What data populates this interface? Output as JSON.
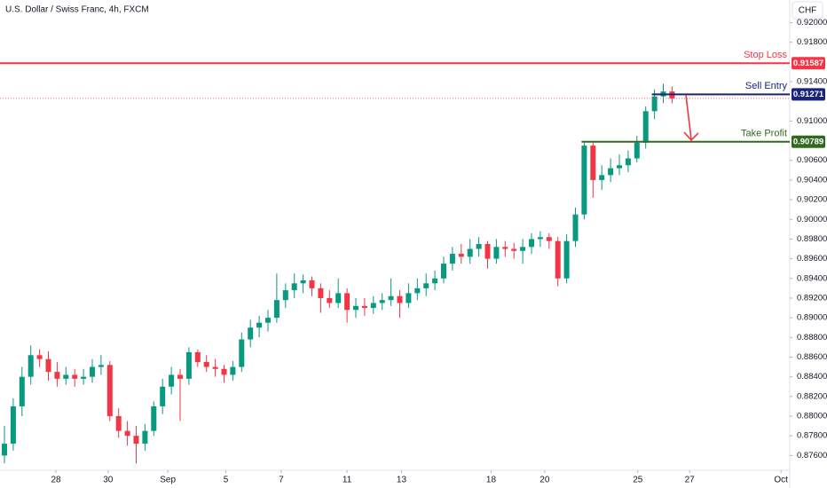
{
  "chart_data": {
    "type": "candlestick",
    "title": "U.S. Dollar / Swiss Franc, 4h, FXCM",
    "currency": "CHF",
    "up_color": "#089981",
    "down_color": "#f23645",
    "ylim": [
      0.8745,
      0.9223
    ],
    "yticks": [
      {
        "value": 0.92,
        "label": "0.92000"
      },
      {
        "value": 0.918,
        "label": "0.91800"
      },
      {
        "value": 0.914,
        "label": "0.91400"
      },
      {
        "value": 0.91,
        "label": "0.91000"
      },
      {
        "value": 0.906,
        "label": "0.90600"
      },
      {
        "value": 0.904,
        "label": "0.90400"
      },
      {
        "value": 0.902,
        "label": "0.90200"
      },
      {
        "value": 0.9,
        "label": "0.90000"
      },
      {
        "value": 0.898,
        "label": "0.89800"
      },
      {
        "value": 0.896,
        "label": "0.89600"
      },
      {
        "value": 0.894,
        "label": "0.89400"
      },
      {
        "value": 0.892,
        "label": "0.89200"
      },
      {
        "value": 0.89,
        "label": "0.89000"
      },
      {
        "value": 0.888,
        "label": "0.88800"
      },
      {
        "value": 0.886,
        "label": "0.88600"
      },
      {
        "value": 0.884,
        "label": "0.88400"
      },
      {
        "value": 0.882,
        "label": "0.88200"
      },
      {
        "value": 0.88,
        "label": "0.88000"
      },
      {
        "value": 0.878,
        "label": "0.87800"
      },
      {
        "value": 0.876,
        "label": "0.87600"
      }
    ],
    "xticks": [
      {
        "value": 5.86,
        "label": "28"
      },
      {
        "value": 11.8,
        "label": "30"
      },
      {
        "value": 18.6,
        "label": "Sep"
      },
      {
        "value": 25.2,
        "label": "5"
      },
      {
        "value": 31.5,
        "label": "7"
      },
      {
        "value": 39,
        "label": "11"
      },
      {
        "value": 45.2,
        "label": "13"
      },
      {
        "value": 55.4,
        "label": "18"
      },
      {
        "value": 61.5,
        "label": "20"
      },
      {
        "value": 72.1,
        "label": "25"
      },
      {
        "value": 78,
        "label": "27"
      },
      {
        "value": 88.4,
        "label": "Oct"
      }
    ],
    "levels": [
      {
        "label": "Stop Loss",
        "value": 0.91587,
        "color": "#f23645"
      },
      {
        "label": "Sell Entry",
        "value": 0.91271,
        "color": "#1a237e"
      },
      {
        "label": "Take Profit",
        "value": 0.90789,
        "color": "#33691e"
      }
    ],
    "ohlc": [
      [
        0.876,
        0.879,
        0.8752,
        0.8772
      ],
      [
        0.8772,
        0.8818,
        0.8765,
        0.881
      ],
      [
        0.881,
        0.885,
        0.88,
        0.884
      ],
      [
        0.884,
        0.8872,
        0.8832,
        0.8862
      ],
      [
        0.8862,
        0.8868,
        0.885,
        0.8858
      ],
      [
        0.8858,
        0.8866,
        0.8836,
        0.8845
      ],
      [
        0.8845,
        0.8855,
        0.883,
        0.8838
      ],
      [
        0.8838,
        0.885,
        0.8832,
        0.8842
      ],
      [
        0.8842,
        0.8848,
        0.883,
        0.8838
      ],
      [
        0.8838,
        0.8848,
        0.8832,
        0.884
      ],
      [
        0.884,
        0.8858,
        0.8834,
        0.885
      ],
      [
        0.885,
        0.8862,
        0.8842,
        0.8852
      ],
      [
        0.8852,
        0.8856,
        0.8795,
        0.88
      ],
      [
        0.88,
        0.8808,
        0.8778,
        0.8785
      ],
      [
        0.8785,
        0.8795,
        0.877,
        0.878
      ],
      [
        0.878,
        0.879,
        0.8752,
        0.8772
      ],
      [
        0.8772,
        0.8792,
        0.8765,
        0.8785
      ],
      [
        0.8785,
        0.8815,
        0.878,
        0.881
      ],
      [
        0.881,
        0.8838,
        0.8802,
        0.883
      ],
      [
        0.883,
        0.885,
        0.8822,
        0.8842
      ],
      [
        0.8842,
        0.8848,
        0.8795,
        0.8838
      ],
      [
        0.8838,
        0.887,
        0.8832,
        0.8865
      ],
      [
        0.8865,
        0.8868,
        0.885,
        0.8855
      ],
      [
        0.8855,
        0.8862,
        0.8845,
        0.885
      ],
      [
        0.885,
        0.8858,
        0.884,
        0.8848
      ],
      [
        0.8848,
        0.8852,
        0.8834,
        0.8842
      ],
      [
        0.8842,
        0.8856,
        0.8836,
        0.885
      ],
      [
        0.885,
        0.8885,
        0.8845,
        0.8878
      ],
      [
        0.8878,
        0.8898,
        0.887,
        0.889
      ],
      [
        0.889,
        0.8902,
        0.888,
        0.8895
      ],
      [
        0.8895,
        0.8908,
        0.8886,
        0.89
      ],
      [
        0.89,
        0.8945,
        0.8895,
        0.8918
      ],
      [
        0.8918,
        0.8935,
        0.891,
        0.8928
      ],
      [
        0.8928,
        0.8945,
        0.892,
        0.8935
      ],
      [
        0.8935,
        0.8944,
        0.8925,
        0.8938
      ],
      [
        0.8938,
        0.8942,
        0.8922,
        0.893
      ],
      [
        0.893,
        0.8935,
        0.8905,
        0.892
      ],
      [
        0.892,
        0.8928,
        0.891,
        0.8915
      ],
      [
        0.8915,
        0.894,
        0.891,
        0.8925
      ],
      [
        0.8925,
        0.893,
        0.8895,
        0.8908
      ],
      [
        0.8908,
        0.892,
        0.89,
        0.8912
      ],
      [
        0.8912,
        0.892,
        0.8902,
        0.891
      ],
      [
        0.891,
        0.8922,
        0.8904,
        0.8915
      ],
      [
        0.8915,
        0.8925,
        0.8908,
        0.8918
      ],
      [
        0.8918,
        0.894,
        0.8912,
        0.8922
      ],
      [
        0.8922,
        0.8928,
        0.89,
        0.8915
      ],
      [
        0.8915,
        0.8935,
        0.891,
        0.8925
      ],
      [
        0.8925,
        0.894,
        0.8918,
        0.893
      ],
      [
        0.893,
        0.8945,
        0.8922,
        0.8935
      ],
      [
        0.8935,
        0.8948,
        0.8928,
        0.894
      ],
      [
        0.894,
        0.8962,
        0.8935,
        0.8955
      ],
      [
        0.8955,
        0.8972,
        0.8948,
        0.8965
      ],
      [
        0.8965,
        0.8975,
        0.8955,
        0.8962
      ],
      [
        0.8962,
        0.898,
        0.8955,
        0.897
      ],
      [
        0.897,
        0.8982,
        0.8962,
        0.8975
      ],
      [
        0.8975,
        0.8978,
        0.895,
        0.896
      ],
      [
        0.896,
        0.898,
        0.8955,
        0.8972
      ],
      [
        0.8972,
        0.8978,
        0.8962,
        0.897
      ],
      [
        0.897,
        0.8976,
        0.896,
        0.8968
      ],
      [
        0.8968,
        0.898,
        0.8955,
        0.8972
      ],
      [
        0.8972,
        0.8986,
        0.8965,
        0.898
      ],
      [
        0.898,
        0.8988,
        0.8972,
        0.8982
      ],
      [
        0.8982,
        0.8986,
        0.897,
        0.8978
      ],
      [
        0.8978,
        0.8982,
        0.8932,
        0.894
      ],
      [
        0.894,
        0.8985,
        0.8935,
        0.8978
      ],
      [
        0.8978,
        0.9012,
        0.8972,
        0.9005
      ],
      [
        0.9005,
        0.9078,
        0.9,
        0.9075
      ],
      [
        0.9075,
        0.9078,
        0.9022,
        0.904
      ],
      [
        0.904,
        0.9055,
        0.903,
        0.9045
      ],
      [
        0.9045,
        0.9062,
        0.9038,
        0.9052
      ],
      [
        0.9052,
        0.9066,
        0.9045,
        0.9055
      ],
      [
        0.9055,
        0.907,
        0.9048,
        0.9062
      ],
      [
        0.9062,
        0.9085,
        0.9058,
        0.9078
      ],
      [
        0.9078,
        0.9115,
        0.9072,
        0.911
      ],
      [
        0.911,
        0.9132,
        0.9102,
        0.9125
      ],
      [
        0.9125,
        0.9138,
        0.9118,
        0.913
      ],
      [
        0.913,
        0.9135,
        0.9118,
        0.9123
      ]
    ]
  }
}
